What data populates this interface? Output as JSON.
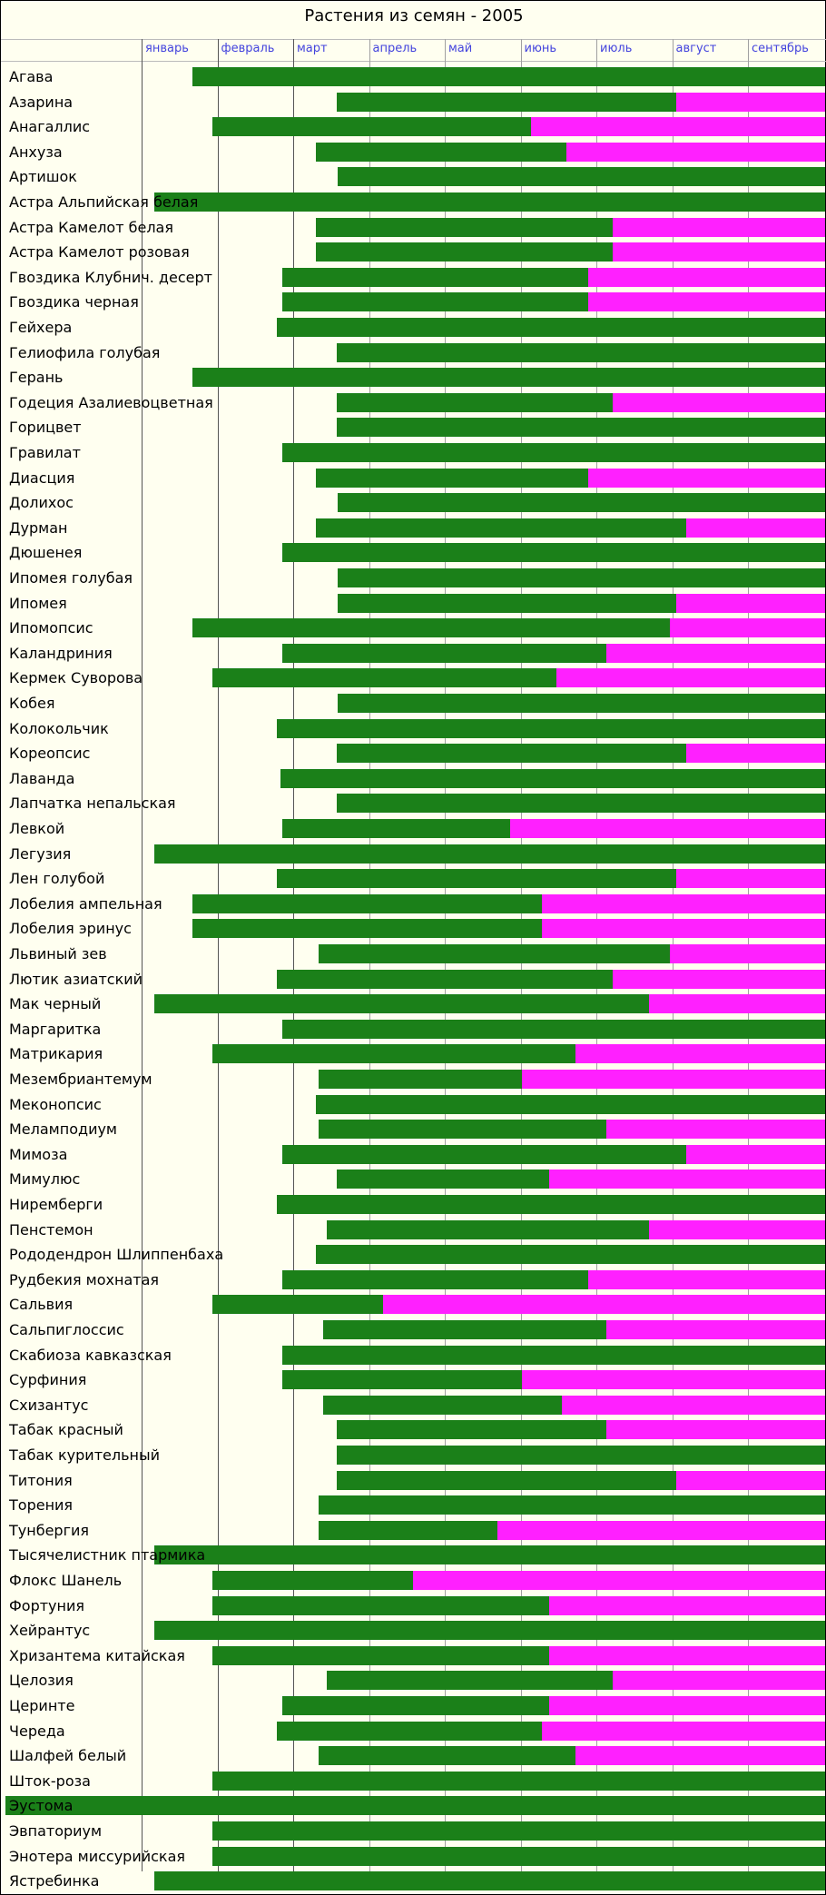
{
  "chart_data": {
    "type": "bar",
    "title": "Растения из семян - 2005",
    "months": [
      "январь",
      "февраль",
      "март",
      "апрель",
      "май",
      "июнь",
      "июль",
      "август",
      "сентябрь"
    ],
    "colors": {
      "growth": "#1b8019",
      "bloom": "#ff20ff",
      "month_label": "#4444dd"
    },
    "plants": [
      {
        "name": "Агава",
        "start": 0.67,
        "bloom": null
      },
      {
        "name": "Азарина",
        "start": 2.57,
        "bloom": 7.05
      },
      {
        "name": "Анагаллис",
        "start": 0.94,
        "bloom": 5.14
      },
      {
        "name": "Анхуза",
        "start": 2.3,
        "bloom": 5.61
      },
      {
        "name": "Артишок",
        "start": 2.59,
        "bloom": null
      },
      {
        "name": "Астра Альпийская белая",
        "start": 0.17,
        "bloom": null
      },
      {
        "name": "Астра Камелот белая",
        "start": 2.3,
        "bloom": 6.22
      },
      {
        "name": "Астра Камелот розовая",
        "start": 2.3,
        "bloom": 6.22
      },
      {
        "name": "Гвоздика Клубнич. десерт",
        "start": 1.86,
        "bloom": 5.89
      },
      {
        "name": "Гвоздика черная",
        "start": 1.86,
        "bloom": 5.89
      },
      {
        "name": "Гейхера",
        "start": 1.79,
        "bloom": null
      },
      {
        "name": "Гелиофила голубая",
        "start": 2.57,
        "bloom": null
      },
      {
        "name": "Герань",
        "start": 0.67,
        "bloom": null
      },
      {
        "name": "Годеция Азалиевоцветная",
        "start": 2.57,
        "bloom": 6.22
      },
      {
        "name": "Горицвет",
        "start": 2.57,
        "bloom": null
      },
      {
        "name": "Гравилат",
        "start": 1.86,
        "bloom": null
      },
      {
        "name": "Диасция",
        "start": 2.3,
        "bloom": 5.89
      },
      {
        "name": "Долихос",
        "start": 2.59,
        "bloom": null
      },
      {
        "name": "Дурман",
        "start": 2.3,
        "bloom": 7.19
      },
      {
        "name": "Дюшенея",
        "start": 1.86,
        "bloom": null
      },
      {
        "name": "Ипомея голубая",
        "start": 2.59,
        "bloom": null
      },
      {
        "name": "Ипомея",
        "start": 2.59,
        "bloom": 7.05
      },
      {
        "name": "Ипомопсис",
        "start": 0.67,
        "bloom": 6.97
      },
      {
        "name": "Каландриния",
        "start": 1.86,
        "bloom": 6.13
      },
      {
        "name": "Кермек Суворова",
        "start": 0.94,
        "bloom": 5.47
      },
      {
        "name": "Кобея",
        "start": 2.59,
        "bloom": null
      },
      {
        "name": "Колокольчик",
        "start": 1.79,
        "bloom": null
      },
      {
        "name": "Кореопсис",
        "start": 2.57,
        "bloom": 7.19
      },
      {
        "name": "Лаванда",
        "start": 1.83,
        "bloom": null
      },
      {
        "name": "Лапчатка непальская",
        "start": 2.57,
        "bloom": null
      },
      {
        "name": "Левкой",
        "start": 1.86,
        "bloom": 4.86
      },
      {
        "name": "Легузия",
        "start": 0.17,
        "bloom": null
      },
      {
        "name": "Лен голубой",
        "start": 1.79,
        "bloom": 7.05
      },
      {
        "name": "Лобелия ампельная",
        "start": 0.67,
        "bloom": 5.28
      },
      {
        "name": "Лобелия эринус",
        "start": 0.67,
        "bloom": 5.28
      },
      {
        "name": "Львиный зев",
        "start": 2.33,
        "bloom": 6.97
      },
      {
        "name": "Лютик азиатский",
        "start": 1.79,
        "bloom": 6.22
      },
      {
        "name": "Мак черный",
        "start": 0.17,
        "bloom": 6.69
      },
      {
        "name": "Маргаритка",
        "start": 1.86,
        "bloom": null
      },
      {
        "name": "Матрикария",
        "start": 0.94,
        "bloom": 5.72
      },
      {
        "name": "Мезембриантемум",
        "start": 2.33,
        "bloom": 5.02
      },
      {
        "name": "Меконопсис",
        "start": 2.3,
        "bloom": null
      },
      {
        "name": "Меламподиум",
        "start": 2.33,
        "bloom": 6.13
      },
      {
        "name": "Мимоза",
        "start": 1.86,
        "bloom": 7.19
      },
      {
        "name": "Мимулюс",
        "start": 2.57,
        "bloom": 5.38
      },
      {
        "name": "Ниремберги",
        "start": 1.79,
        "bloom": null
      },
      {
        "name": "Пенстемон",
        "start": 2.44,
        "bloom": 6.69
      },
      {
        "name": "Рододендрон Шлиппенбаха",
        "start": 2.3,
        "bloom": null
      },
      {
        "name": "Рудбекия мохнатая",
        "start": 1.86,
        "bloom": 5.89
      },
      {
        "name": "Сальвия",
        "start": 0.94,
        "bloom": 3.19
      },
      {
        "name": "Сальпиглоссис",
        "start": 2.39,
        "bloom": 6.13
      },
      {
        "name": "Скабиоза кавказская",
        "start": 1.86,
        "bloom": null
      },
      {
        "name": "Сурфиния",
        "start": 1.86,
        "bloom": 5.02
      },
      {
        "name": "Схизантус",
        "start": 2.39,
        "bloom": 5.55
      },
      {
        "name": "Табак красный",
        "start": 2.57,
        "bloom": 6.13
      },
      {
        "name": "Табак курительный",
        "start": 2.57,
        "bloom": null
      },
      {
        "name": "Титония",
        "start": 2.57,
        "bloom": 7.05
      },
      {
        "name": "Торения",
        "start": 2.33,
        "bloom": null
      },
      {
        "name": "Тунбергия",
        "start": 2.33,
        "bloom": 4.69
      },
      {
        "name": "Тысячелистник птармика",
        "start": 0.17,
        "bloom": null
      },
      {
        "name": "Флокс Шанель",
        "start": 0.94,
        "bloom": 3.58
      },
      {
        "name": "Фортуния",
        "start": 0.94,
        "bloom": 5.38
      },
      {
        "name": "Хейрантус",
        "start": 0.17,
        "bloom": null
      },
      {
        "name": "Хризантема китайская",
        "start": 0.94,
        "bloom": 5.38
      },
      {
        "name": "Целозия",
        "start": 2.44,
        "bloom": 6.22
      },
      {
        "name": "Церинте",
        "start": 1.86,
        "bloom": 5.38
      },
      {
        "name": "Череда",
        "start": 1.79,
        "bloom": 5.28
      },
      {
        "name": "Шалфей белый",
        "start": 2.33,
        "bloom": 5.72
      },
      {
        "name": "Шток-роза",
        "start": 0.94,
        "bloom": null
      },
      {
        "name": "Эустома",
        "start": -1.8,
        "bloom": null
      },
      {
        "name": "Эвпаториум",
        "start": 0.94,
        "bloom": null
      },
      {
        "name": "Энотера миссурийская",
        "start": 0.94,
        "bloom": null
      },
      {
        "name": "Ястребинка",
        "start": 0.17,
        "bloom": null
      }
    ]
  }
}
